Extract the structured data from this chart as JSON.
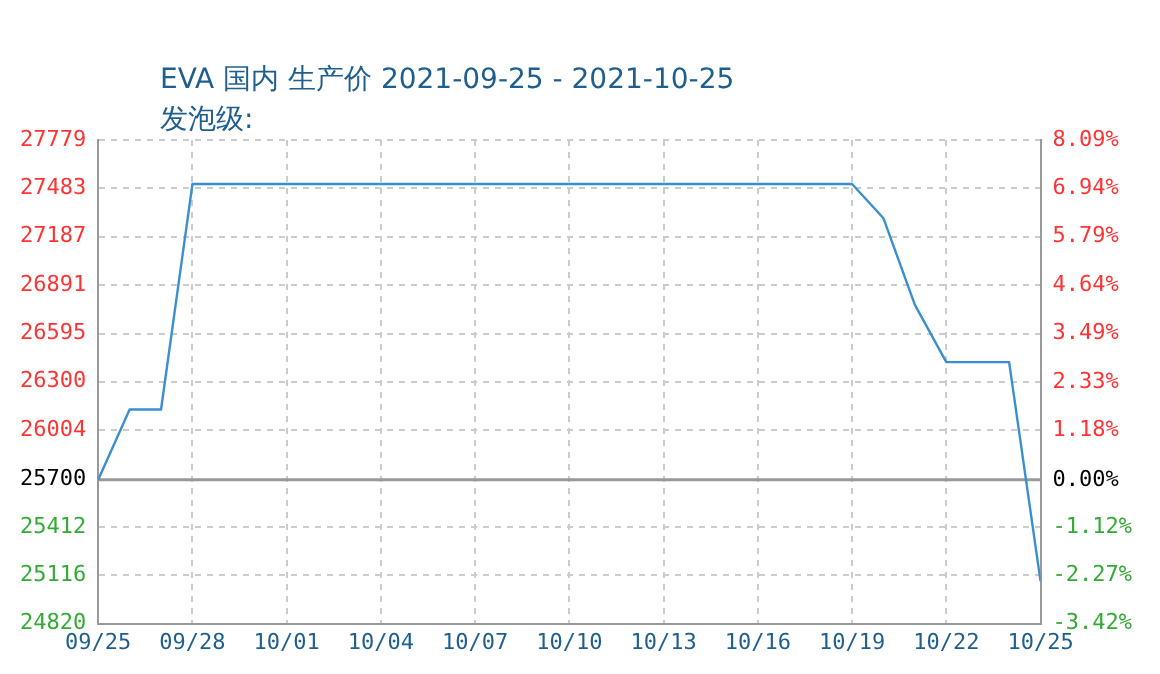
{
  "chart_data": {
    "type": "line",
    "title": "EVA 国内 生产价 2021-09-25 - 2021-10-25",
    "subtitle": "发泡级:",
    "x": [
      "2021-09-25",
      "2021-09-26",
      "2021-09-27",
      "2021-09-28",
      "2021-10-19",
      "2021-10-20",
      "2021-10-21",
      "2021-10-22",
      "2021-10-24",
      "2021-10-25"
    ],
    "series": [
      {
        "color": "#3a8fd0",
        "values": [
          25700,
          26130,
          26130,
          27510,
          27510,
          27300,
          26770,
          26420,
          26420,
          25080
        ]
      }
    ],
    "xlim": [
      "2021-09-25",
      "2021-10-25"
    ],
    "xticks": [
      {
        "value": "2021-09-25",
        "label": "09/25"
      },
      {
        "value": "2021-09-28",
        "label": "09/28"
      },
      {
        "value": "2021-10-01",
        "label": "10/01"
      },
      {
        "value": "2021-10-04",
        "label": "10/04"
      },
      {
        "value": "2021-10-07",
        "label": "10/07"
      },
      {
        "value": "2021-10-10",
        "label": "10/10"
      },
      {
        "value": "2021-10-13",
        "label": "10/13"
      },
      {
        "value": "2021-10-16",
        "label": "10/16"
      },
      {
        "value": "2021-10-19",
        "label": "10/19"
      },
      {
        "value": "2021-10-22",
        "label": "10/22"
      },
      {
        "value": "2021-10-25",
        "label": "10/25"
      }
    ],
    "ylim": [
      24820,
      27779
    ],
    "yticks": [
      24820,
      25116,
      25412,
      25700,
      26004,
      26300,
      26595,
      26891,
      27187,
      27483,
      27779
    ],
    "y2lim": [
      -3.42,
      8.09
    ],
    "y2ticks": [
      {
        "value": -3.42,
        "label": "-3.42%"
      },
      {
        "value": -2.27,
        "label": "-2.27%"
      },
      {
        "value": -1.12,
        "label": "-1.12%"
      },
      {
        "value": 0,
        "label": "0.00%"
      },
      {
        "value": 1.18,
        "label": "1.18%"
      },
      {
        "value": 2.33,
        "label": "2.33%"
      },
      {
        "value": 3.49,
        "label": "3.49%"
      },
      {
        "value": 4.64,
        "label": "4.64%"
      },
      {
        "value": 5.79,
        "label": "5.79%"
      },
      {
        "value": 6.94,
        "label": "6.94%"
      },
      {
        "value": 8.09,
        "label": "8.09%"
      }
    ],
    "ref_lines": [
      {
        "axis": "y",
        "value": 25700,
        "color": "#999999"
      }
    ],
    "grid": true,
    "legend": false,
    "marker": "none",
    "line_style": "solid"
  }
}
